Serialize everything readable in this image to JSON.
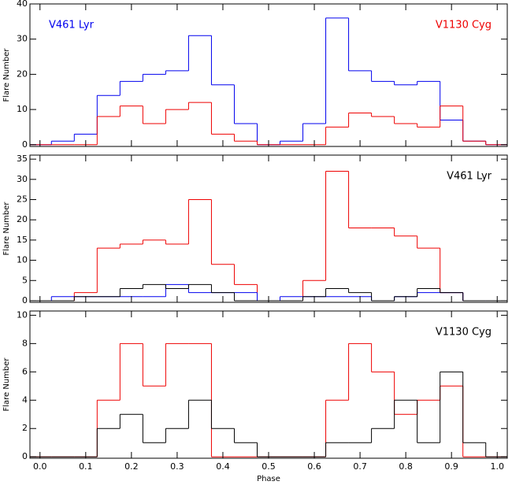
{
  "chart_data": [
    {
      "type": "histogram",
      "y_label": "Flare Number",
      "bins": [
        -0.025,
        0.025,
        0.075,
        0.125,
        0.175,
        0.225,
        0.275,
        0.325,
        0.375,
        0.425,
        0.475,
        0.525,
        0.575,
        0.625,
        0.675,
        0.725,
        0.775,
        0.825,
        0.875,
        0.925,
        0.975,
        1.025
      ],
      "xlim": [
        -0.022,
        1.022
      ],
      "ylim": [
        -0.5,
        40
      ],
      "yticks": [
        0,
        10,
        20,
        30,
        40
      ],
      "annotations": [
        {
          "text": "V461 Lyr",
          "color": "#0000ee",
          "corner": "top-left"
        },
        {
          "text": "V1130 Cyg",
          "color": "#ee0000",
          "corner": "top-right"
        }
      ],
      "series": [
        {
          "color": "#0000ee",
          "values": [
            0,
            1,
            3,
            14,
            18,
            20,
            21,
            31,
            17,
            6,
            0,
            1,
            6,
            36,
            21,
            18,
            17,
            18,
            7,
            1,
            0
          ]
        },
        {
          "color": "#ee0000",
          "values": [
            0,
            0,
            0,
            8,
            11,
            6,
            10,
            12,
            3,
            1,
            0,
            0,
            0,
            5,
            9,
            8,
            6,
            5,
            11,
            1,
            0
          ]
        }
      ]
    },
    {
      "type": "histogram",
      "y_label": "Flare Number",
      "bins": [
        -0.025,
        0.025,
        0.075,
        0.125,
        0.175,
        0.225,
        0.275,
        0.325,
        0.375,
        0.425,
        0.475,
        0.525,
        0.575,
        0.625,
        0.675,
        0.725,
        0.775,
        0.825,
        0.875,
        0.925,
        0.975,
        1.025
      ],
      "xlim": [
        -0.022,
        1.022
      ],
      "ylim": [
        -0.4,
        36
      ],
      "yticks": [
        0,
        5,
        10,
        15,
        20,
        25,
        30,
        35
      ],
      "annotations": [
        {
          "text": "V461 Lyr",
          "color": "#000000",
          "corner": "top-right"
        }
      ],
      "series": [
        {
          "color": "#ee0000",
          "values": [
            0,
            0,
            2,
            13,
            14,
            15,
            14,
            25,
            9,
            4,
            0,
            0,
            5,
            32,
            18,
            18,
            16,
            13,
            2,
            0,
            0
          ]
        },
        {
          "color": "#0000ee",
          "values": [
            0,
            1,
            1,
            1,
            1,
            1,
            4,
            2,
            2,
            2,
            0,
            1,
            1,
            1,
            1,
            0,
            1,
            2,
            2,
            0,
            0
          ]
        },
        {
          "color": "#000000",
          "values": [
            0,
            0,
            1,
            1,
            3,
            4,
            3,
            4,
            2,
            0,
            0,
            0,
            1,
            3,
            2,
            0,
            1,
            3,
            2,
            0,
            0
          ]
        }
      ]
    },
    {
      "type": "histogram",
      "y_label": "Flare Number",
      "x_label": "Phase",
      "bins": [
        -0.025,
        0.025,
        0.075,
        0.125,
        0.175,
        0.225,
        0.275,
        0.325,
        0.375,
        0.425,
        0.475,
        0.525,
        0.575,
        0.625,
        0.675,
        0.725,
        0.775,
        0.825,
        0.875,
        0.925,
        0.975,
        1.025
      ],
      "xlim": [
        -0.022,
        1.022
      ],
      "ylim": [
        -0.1,
        10.3
      ],
      "yticks": [
        0,
        2,
        4,
        6,
        8,
        10
      ],
      "xticks": [
        {
          "value": 0,
          "label": "0.0"
        },
        0.1,
        0.2,
        0.3,
        0.4,
        0.5,
        0.6,
        0.7,
        0.8,
        0.9,
        {
          "value": 1,
          "label": "1.0"
        }
      ],
      "annotations": [
        {
          "text": "V1130 Cyg",
          "color": "#000000",
          "corner": "top-right"
        }
      ],
      "series": [
        {
          "color": "#ee0000",
          "values": [
            0,
            0,
            0,
            4,
            8,
            5,
            8,
            8,
            0,
            0,
            0,
            0,
            0,
            4,
            8,
            6,
            3,
            4,
            5,
            0,
            0
          ]
        },
        {
          "color": "#000000",
          "values": [
            0,
            0,
            0,
            2,
            3,
            1,
            2,
            4,
            2,
            1,
            0,
            0,
            0,
            1,
            1,
            2,
            4,
            1,
            6,
            1,
            0
          ]
        }
      ]
    }
  ]
}
